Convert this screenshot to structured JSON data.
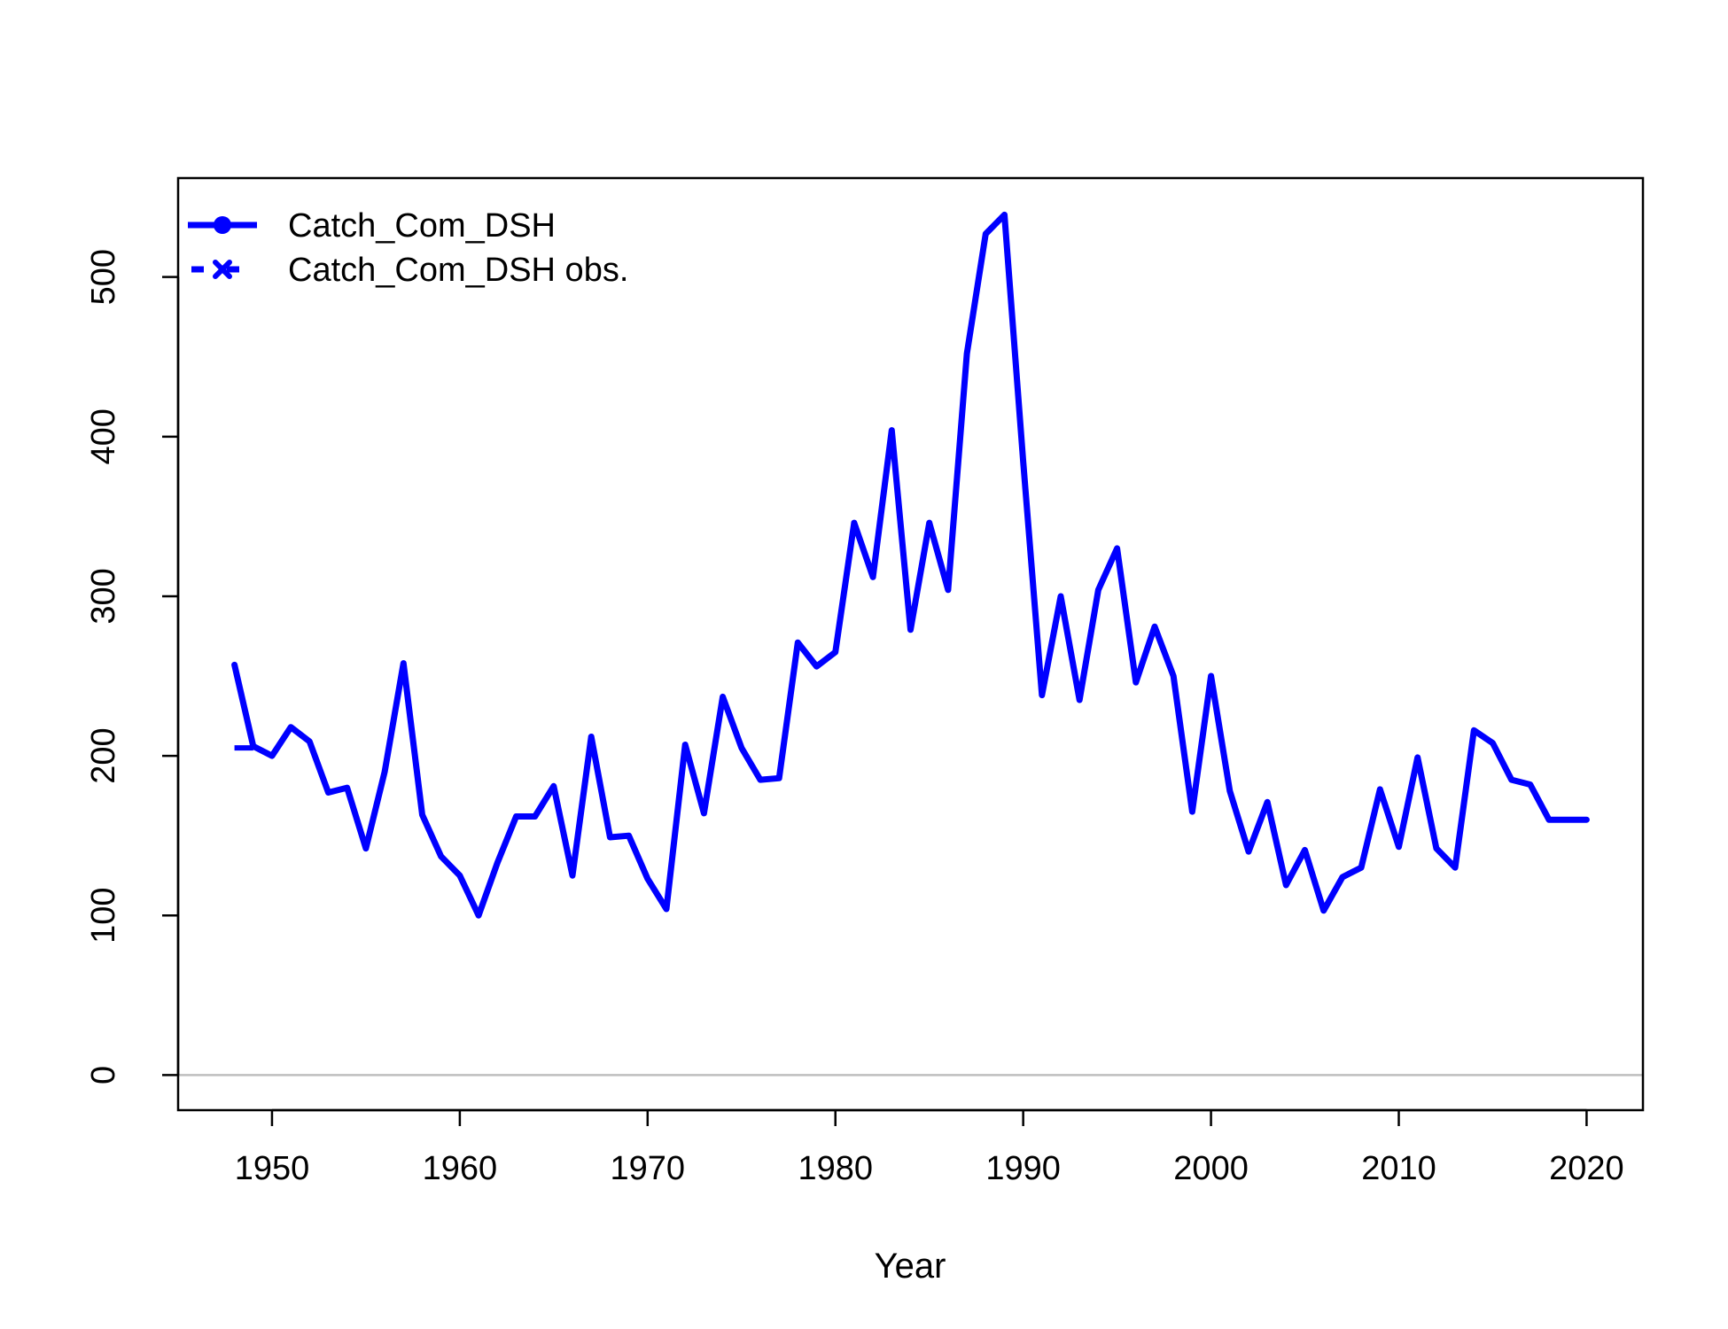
{
  "chart_data": {
    "type": "line",
    "title": "",
    "xlabel": "Year",
    "ylabel": "",
    "xlim": [
      1945,
      2023
    ],
    "ylim": [
      -22,
      562
    ],
    "xticks": [
      1950,
      1960,
      1970,
      1980,
      1990,
      2000,
      2010,
      2020
    ],
    "yticks": [
      0,
      100,
      200,
      300,
      400,
      500
    ],
    "grid": false,
    "zero_line": true,
    "legend_position": "top-left",
    "colors": {
      "series": "#0000ff",
      "zero_line": "#bebebe",
      "axes": "#000000"
    },
    "series": [
      {
        "name": "Catch_Com_DSH",
        "style": "solid",
        "x": [
          1948,
          1949,
          1950,
          1951,
          1952,
          1953,
          1954,
          1955,
          1956,
          1957,
          1958,
          1959,
          1960,
          1961,
          1962,
          1963,
          1964,
          1965,
          1966,
          1967,
          1968,
          1969,
          1970,
          1971,
          1972,
          1973,
          1974,
          1975,
          1976,
          1977,
          1978,
          1979,
          1980,
          1981,
          1982,
          1983,
          1984,
          1985,
          1986,
          1987,
          1988,
          1989,
          1990,
          1991,
          1992,
          1993,
          1994,
          1995,
          1996,
          1997,
          1998,
          1999,
          2000,
          2001,
          2002,
          2003,
          2004,
          2005,
          2006,
          2007,
          2008,
          2009,
          2010,
          2011,
          2012,
          2013,
          2014,
          2015,
          2016,
          2017,
          2018,
          2019,
          2020
        ],
        "values": [
          257,
          206,
          200,
          218,
          209,
          177,
          180,
          142,
          190,
          258,
          163,
          137,
          125,
          100,
          133,
          162,
          162,
          181,
          125,
          212,
          149,
          150,
          123,
          104,
          207,
          164,
          237,
          205,
          185,
          186,
          271,
          256,
          265,
          346,
          312,
          404,
          279,
          346,
          304,
          452,
          527,
          539,
          384,
          238,
          300,
          235,
          304,
          330,
          246,
          281,
          250,
          165,
          250,
          178,
          140,
          171,
          119,
          141,
          103,
          124,
          130,
          179,
          143,
          199,
          142,
          130,
          216,
          208,
          185,
          182,
          160,
          160,
          160
        ]
      },
      {
        "name": "Catch_Com_DSH obs.",
        "style": "dashed",
        "x": [
          1948,
          1949
        ],
        "values": [
          205,
          205
        ]
      }
    ]
  }
}
